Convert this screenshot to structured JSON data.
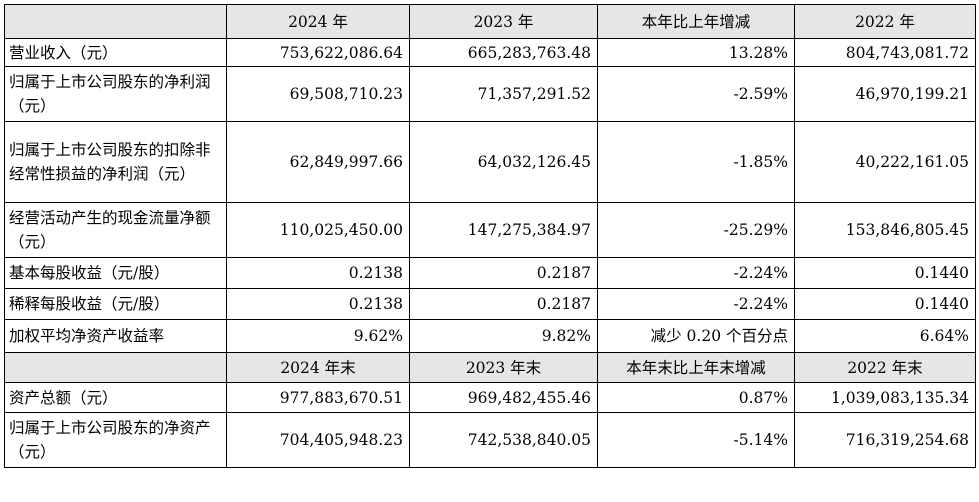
{
  "header1": {
    "col1": "2024 年",
    "col2": "2023 年",
    "col3": "本年比上年增减",
    "col4": "2022 年"
  },
  "header2": {
    "col1": "2024 年末",
    "col2": "2023 年末",
    "col3": "本年末比上年末增减",
    "col4": "2022 年末"
  },
  "rows_year": [
    {
      "label": "营业收入（元）",
      "v2024": "753,622,086.64",
      "v2023": "665,283,763.48",
      "change": "13.28%",
      "v2022": "804,743,081.72"
    },
    {
      "label": "归属于上市公司股东的净利润（元）",
      "v2024": "69,508,710.23",
      "v2023": "71,357,291.52",
      "change": "-2.59%",
      "v2022": "46,970,199.21"
    },
    {
      "label": "归属于上市公司股东的扣除非经常性损益的净利润（元）",
      "v2024": "62,849,997.66",
      "v2023": "64,032,126.45",
      "change": "-1.85%",
      "v2022": "40,222,161.05"
    },
    {
      "label": "经营活动产生的现金流量净额（元）",
      "v2024": "110,025,450.00",
      "v2023": "147,275,384.97",
      "change": "-25.29%",
      "v2022": "153,846,805.45"
    },
    {
      "label": "基本每股收益（元/股）",
      "v2024": "0.2138",
      "v2023": "0.2187",
      "change": "-2.24%",
      "v2022": "0.1440"
    },
    {
      "label": "稀释每股收益（元/股）",
      "v2024": "0.2138",
      "v2023": "0.2187",
      "change": "-2.24%",
      "v2022": "0.1440"
    },
    {
      "label": "加权平均净资产收益率",
      "v2024": "9.62%",
      "v2023": "9.82%",
      "change": "减少 0.20 个百分点",
      "v2022": "6.64%"
    }
  ],
  "rows_yearend": [
    {
      "label": "资产总额（元）",
      "v2024": "977,883,670.51",
      "v2023": "969,482,455.46",
      "change": "0.87%",
      "v2022": "1,039,083,135.34"
    },
    {
      "label": "归属于上市公司股东的净资产（元）",
      "v2024": "704,405,948.23",
      "v2023": "742,538,840.05",
      "change": "-5.14%",
      "v2022": "716,319,254.68"
    }
  ]
}
